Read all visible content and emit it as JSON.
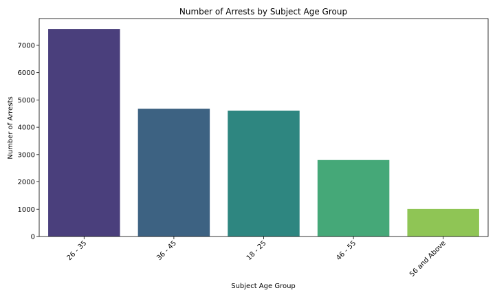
{
  "chart_data": {
    "type": "bar",
    "title": "Number of Arrests by Subject Age Group",
    "xlabel": "Subject Age Group",
    "ylabel": "Number of Arrests",
    "categories": [
      "26 - 35",
      "36 - 45",
      "18 - 25",
      "46 - 55",
      "56 and Above"
    ],
    "values": [
      7600,
      4680,
      4610,
      2800,
      1010
    ],
    "ylim": [
      0,
      7980
    ],
    "yticks": [
      0,
      1000,
      2000,
      3000,
      4000,
      5000,
      6000,
      7000
    ],
    "colors": [
      "#4a3f7c",
      "#3d6282",
      "#2e8680",
      "#45a878",
      "#8fc555"
    ],
    "grid": false,
    "legend": "none"
  }
}
